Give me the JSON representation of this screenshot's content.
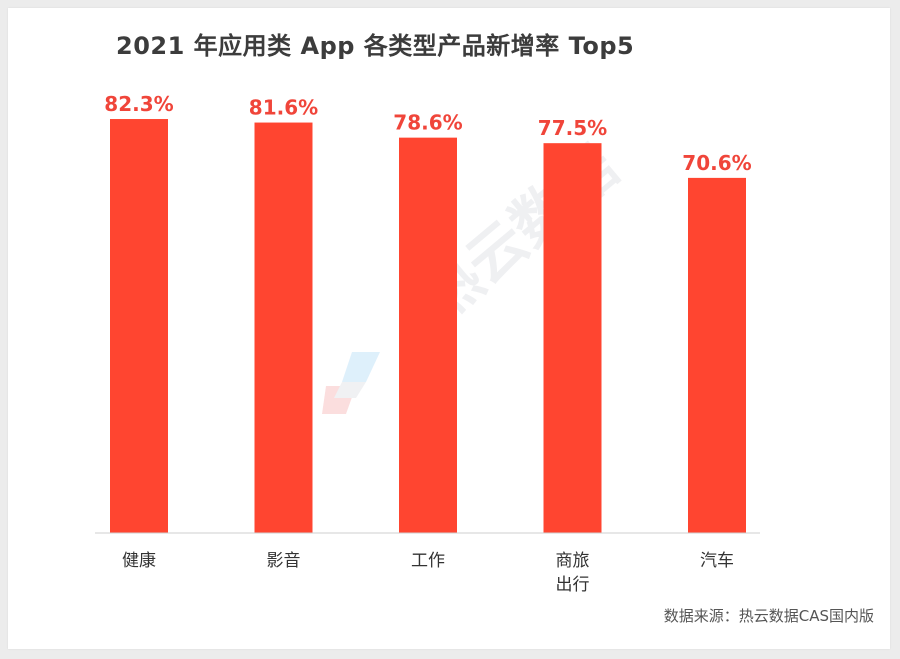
{
  "chart_data": {
    "type": "bar",
    "title": "2021 年应用类 App 各类型产品新增率 Top5",
    "categories": [
      "健康",
      "影音",
      "工作",
      "商旅\n出行",
      "汽车"
    ],
    "values": [
      82.3,
      81.6,
      78.6,
      77.5,
      70.6
    ],
    "value_labels": [
      "82.3%",
      "81.6%",
      "78.6%",
      "77.5%",
      "70.6%"
    ],
    "xlabel": "",
    "ylabel": "",
    "ylim": [
      0,
      100
    ],
    "grid": false,
    "legend": "none",
    "bar_color": "#ff4530",
    "label_color": "#f0453a"
  },
  "source_text": "数据来源：热云数据CAS国内版",
  "watermark_text": "热云数据",
  "watermark_logo": "reyun-logo-icon"
}
